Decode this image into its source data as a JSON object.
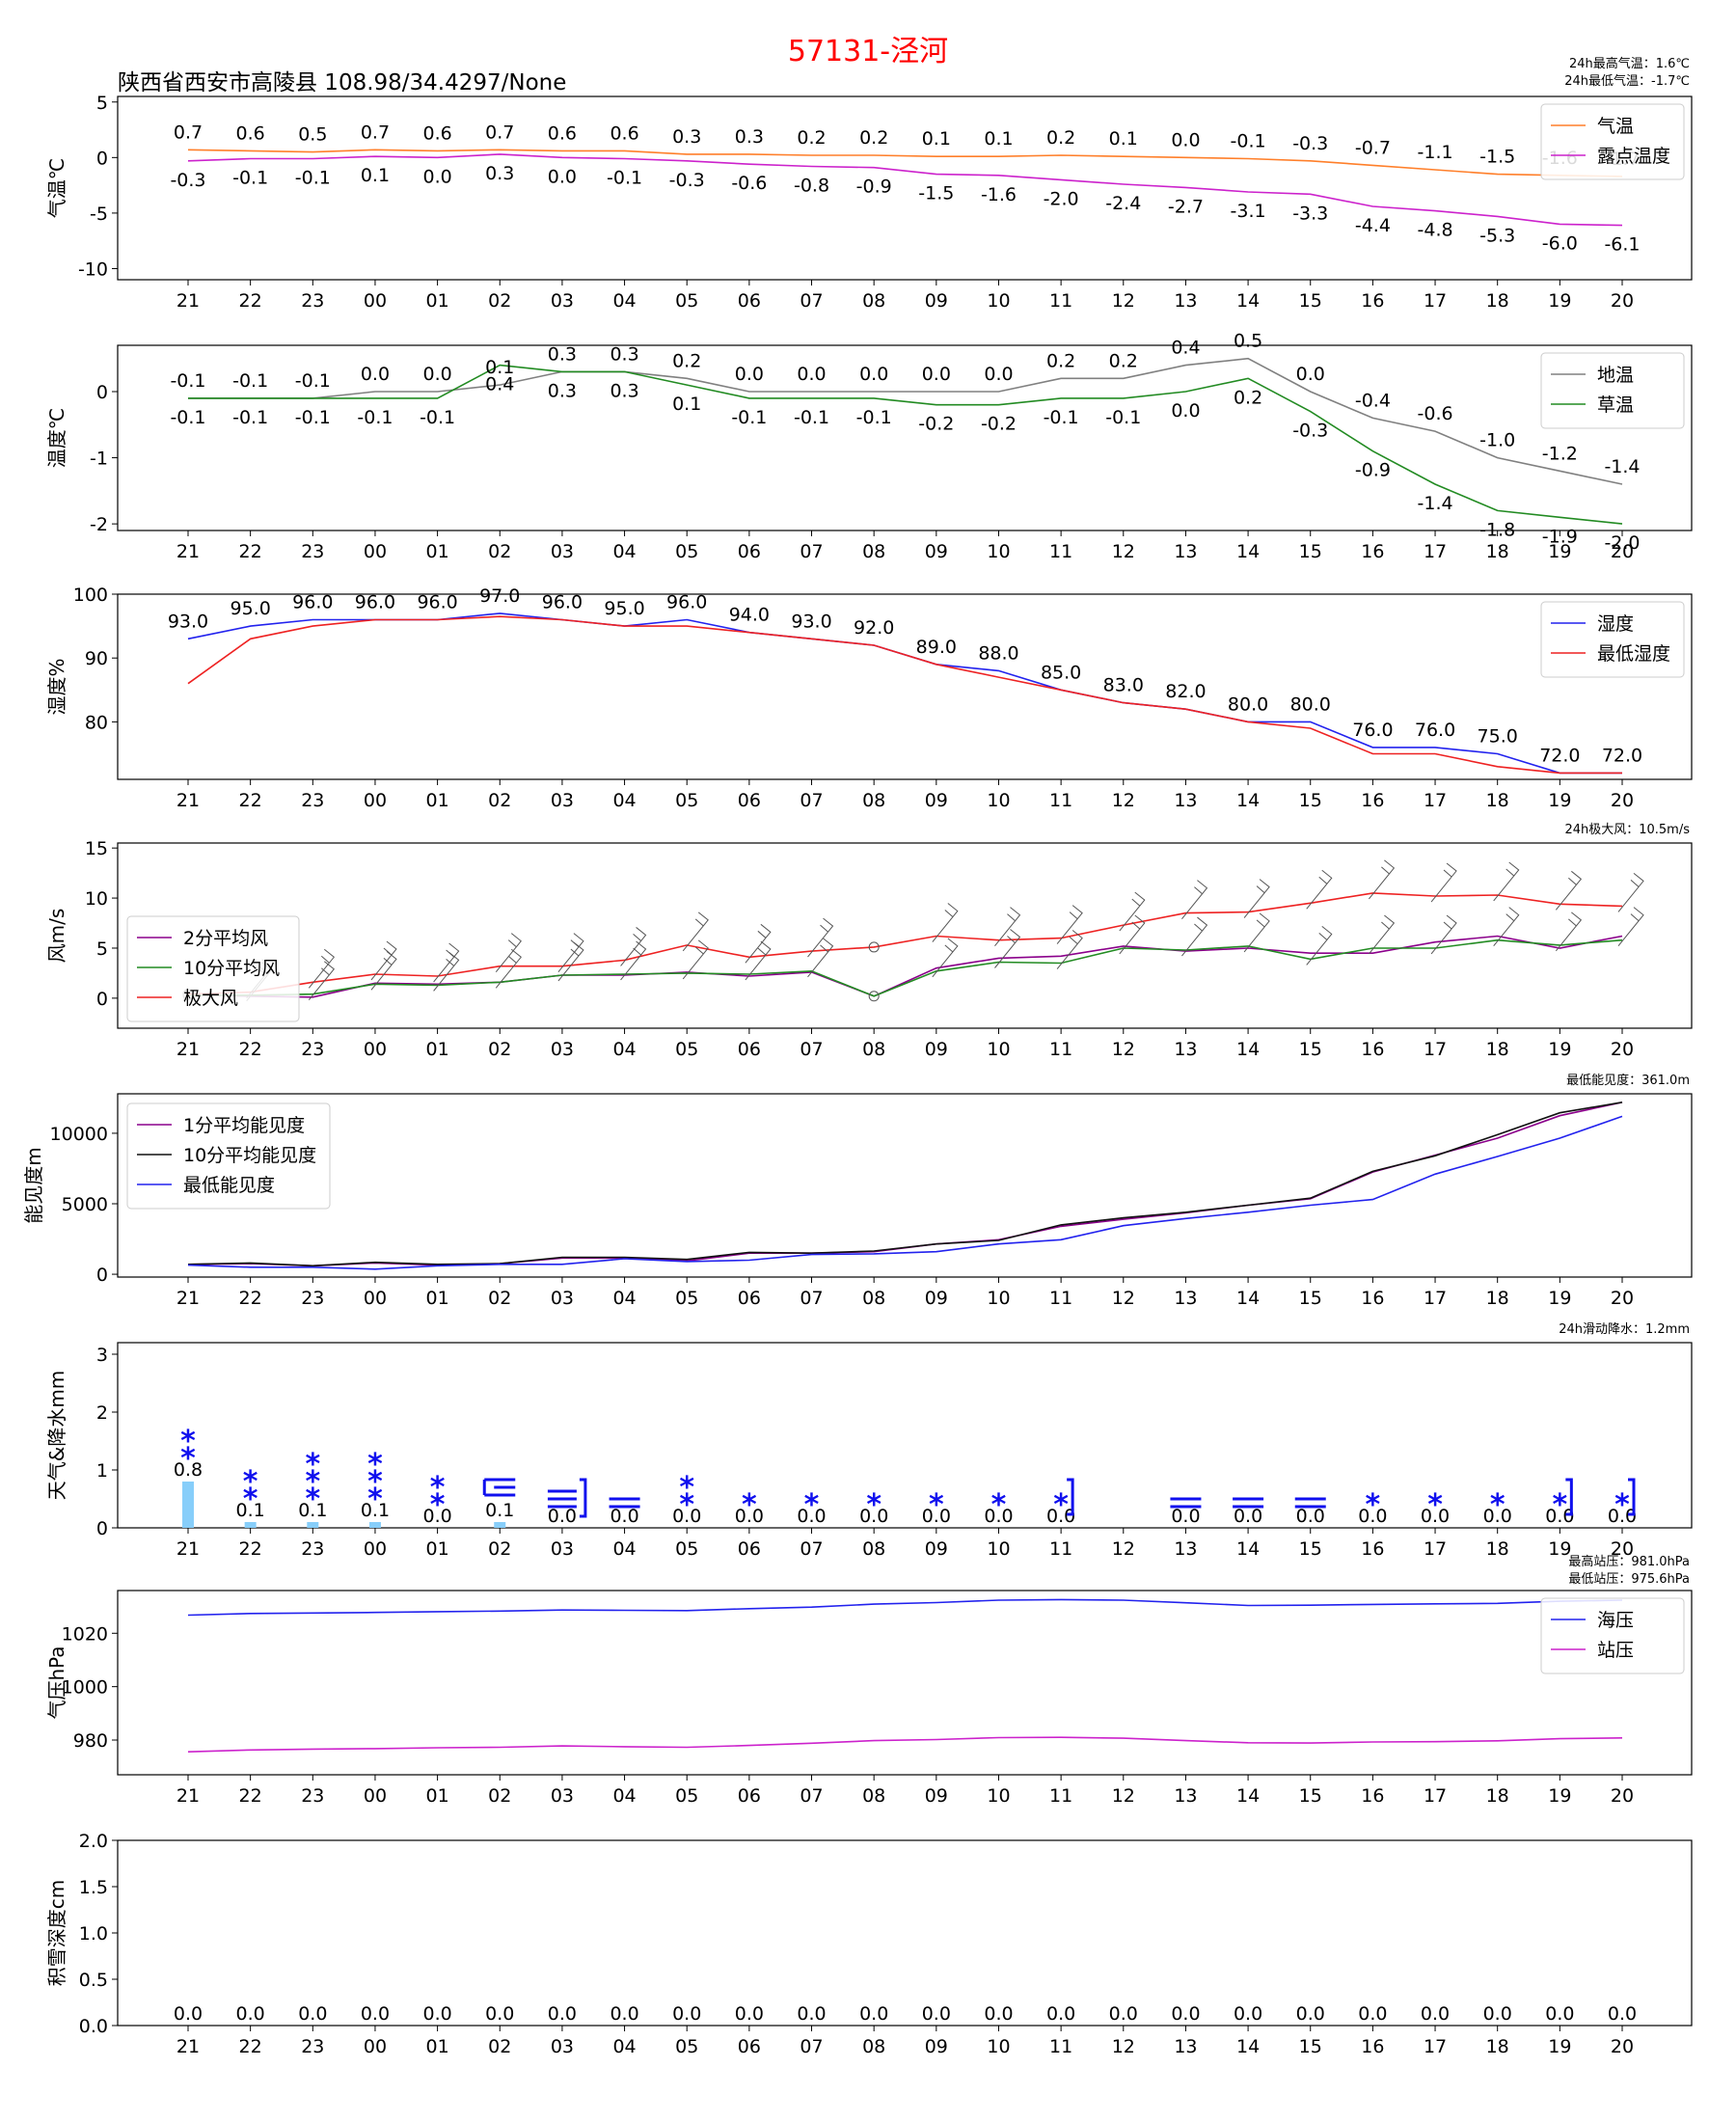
{
  "header": {
    "title": "57131-泾河",
    "station": "陕西省西安市高陵县  108.98/34.4297/None"
  },
  "hours": [
    "21",
    "22",
    "23",
    "00",
    "01",
    "02",
    "03",
    "04",
    "05",
    "06",
    "07",
    "08",
    "09",
    "10",
    "11",
    "12",
    "13",
    "14",
    "15",
    "16",
    "17",
    "18",
    "19",
    "20"
  ],
  "chart_data": [
    {
      "id": "temp",
      "type": "line",
      "ylabel": "气温℃",
      "ylim": [
        -11,
        5.5
      ],
      "yticks": [
        5,
        0,
        -5,
        -10
      ],
      "notes": [
        "24h最高气温：1.6℃",
        "24h最低气温：-1.7℃"
      ],
      "legend": "top-right",
      "series": [
        {
          "name": "气温",
          "color": "#ff7f2a",
          "labels": "above",
          "values": [
            0.7,
            0.6,
            0.5,
            0.7,
            0.6,
            0.7,
            0.6,
            0.6,
            0.3,
            0.3,
            0.2,
            0.2,
            0.1,
            0.1,
            0.2,
            0.1,
            0.0,
            -0.1,
            -0.3,
            -0.7,
            -1.1,
            -1.5,
            -1.6,
            -1.7
          ]
        },
        {
          "name": "露点温度",
          "color": "#cc22cc",
          "labels": "below",
          "values": [
            -0.3,
            -0.1,
            -0.1,
            0.1,
            0.0,
            0.3,
            0.0,
            -0.1,
            -0.3,
            -0.6,
            -0.8,
            -0.9,
            -1.5,
            -1.6,
            -2.0,
            -2.4,
            -2.7,
            -3.1,
            -3.3,
            -4.4,
            -4.8,
            -5.3,
            -6.0,
            -6.1
          ]
        }
      ]
    },
    {
      "id": "ground",
      "type": "line",
      "ylabel": "温度℃",
      "ylim": [
        -2.1,
        0.7
      ],
      "yticks": [
        0,
        -1,
        -2
      ],
      "legend": "top-right",
      "series": [
        {
          "name": "地温",
          "color": "#808080",
          "labels": "above",
          "values": [
            -0.1,
            -0.1,
            -0.1,
            0.0,
            0.0,
            0.1,
            0.3,
            0.3,
            0.2,
            0.0,
            0.0,
            0.0,
            0.0,
            0.0,
            0.2,
            0.2,
            0.4,
            0.5,
            0.0,
            -0.4,
            -0.6,
            -1.0,
            -1.2,
            -1.4
          ]
        },
        {
          "name": "草温",
          "color": "#228b22",
          "labels": "below",
          "values": [
            -0.1,
            -0.1,
            -0.1,
            -0.1,
            -0.1,
            0.4,
            0.3,
            0.3,
            0.1,
            -0.1,
            -0.1,
            -0.1,
            -0.2,
            -0.2,
            -0.1,
            -0.1,
            0.0,
            0.2,
            -0.3,
            -0.9,
            -1.4,
            -1.8,
            -1.9,
            -2.0
          ]
        }
      ]
    },
    {
      "id": "humidity",
      "type": "line",
      "ylabel": "湿度%",
      "ylim": [
        71,
        100
      ],
      "yticks": [
        100,
        90,
        80
      ],
      "legend": "top-right",
      "series": [
        {
          "name": "湿度",
          "color": "#2222ee",
          "labels": "above",
          "values": [
            93.0,
            95.0,
            96.0,
            96.0,
            96.0,
            97.0,
            96.0,
            95.0,
            96.0,
            94.0,
            93.0,
            92.0,
            89.0,
            88.0,
            85.0,
            83.0,
            82.0,
            80.0,
            80.0,
            76.0,
            76.0,
            75.0,
            72.0,
            72.0
          ]
        },
        {
          "name": "最低湿度",
          "color": "#ee2222",
          "labels": "none",
          "values": [
            86,
            93,
            95,
            96,
            96,
            96.5,
            96,
            95,
            95,
            94,
            93,
            92,
            89,
            87,
            85,
            83,
            82,
            80,
            79,
            75,
            75,
            73,
            72,
            72
          ]
        }
      ]
    },
    {
      "id": "wind",
      "type": "line",
      "ylabel": "风m/s",
      "ylim": [
        -3,
        15.5
      ],
      "yticks": [
        15,
        10,
        5,
        0
      ],
      "notes": [
        "24h极大风：10.5m/s"
      ],
      "legend": "top-left",
      "series": [
        {
          "name": "2分平均风",
          "color": "#8b008b",
          "values": [
            0.3,
            0.2,
            0.1,
            1.5,
            1.4,
            1.6,
            2.3,
            2.3,
            2.6,
            2.2,
            2.6,
            0.2,
            3.0,
            4.0,
            4.2,
            5.2,
            4.7,
            5.0,
            4.5,
            4.5,
            5.6,
            6.2,
            5.0,
            6.2
          ]
        },
        {
          "name": "10分平均风",
          "color": "#228b22",
          "values": [
            0.3,
            0.3,
            0.4,
            1.4,
            1.3,
            1.6,
            2.3,
            2.4,
            2.5,
            2.4,
            2.7,
            0.2,
            2.7,
            3.6,
            3.5,
            5.0,
            4.8,
            5.2,
            3.9,
            5.0,
            5.0,
            5.8,
            5.3,
            5.8
          ]
        },
        {
          "name": "极大风",
          "color": "#ee2222",
          "values": [
            0.4,
            0.6,
            1.6,
            2.4,
            2.2,
            3.2,
            3.2,
            3.8,
            5.3,
            4.1,
            4.7,
            5.1,
            6.2,
            5.8,
            6.0,
            7.3,
            8.5,
            8.6,
            9.5,
            10.5,
            10.2,
            10.3,
            9.4,
            9.2
          ]
        }
      ]
    },
    {
      "id": "visibility",
      "type": "line",
      "ylabel": "能见度m",
      "ylim": [
        -200,
        12800
      ],
      "yticks": [
        10000,
        5000,
        0
      ],
      "notes": [
        "最低能见度：361.0m"
      ],
      "legend": "top-left",
      "series": [
        {
          "name": "1分平均能见度",
          "color": "#8b008b",
          "values": [
            700,
            750,
            600,
            800,
            650,
            750,
            1150,
            1150,
            950,
            1500,
            1500,
            1600,
            2150,
            2450,
            3400,
            3900,
            4350,
            4900,
            5350,
            7250,
            8450,
            9650,
            11250,
            12200
          ]
        },
        {
          "name": "10分平均能见度",
          "color": "#111111",
          "values": [
            700,
            800,
            600,
            850,
            700,
            750,
            1200,
            1200,
            1050,
            1550,
            1500,
            1650,
            2150,
            2400,
            3500,
            4000,
            4400,
            4900,
            5400,
            7300,
            8400,
            9900,
            11450,
            12200
          ]
        },
        {
          "name": "最低能见度",
          "color": "#2222ee",
          "values": [
            650,
            500,
            500,
            361,
            600,
            700,
            700,
            1100,
            900,
            1000,
            1400,
            1450,
            1600,
            2150,
            2450,
            3450,
            3950,
            4400,
            4900,
            5300,
            7100,
            8350,
            9650,
            11200
          ]
        }
      ]
    },
    {
      "id": "precip",
      "type": "bar",
      "ylabel": "天气&降水mm",
      "ylim": [
        0,
        3.2
      ],
      "yticks": [
        0,
        1,
        2,
        3
      ],
      "notes": [
        "24h滑动降水：1.2mm"
      ],
      "bar_color": "#87cefa",
      "values": [
        0.8,
        0.1,
        0.1,
        0.1,
        0.0,
        0.1,
        0.0,
        0.0,
        0.0,
        0.0,
        0.0,
        0.0,
        0.0,
        0.0,
        0.0,
        0.0,
        0.0,
        0.0,
        0.0,
        0.0,
        0.0,
        0.0,
        0.0,
        0.0
      ],
      "value_labels": [
        "0.8",
        "0.1",
        "0.1",
        "0.1",
        "0.0",
        "0.1",
        "0.0",
        "0.0",
        "0.0",
        "0.0",
        "0.0",
        "0.0",
        "0.0",
        "0.0",
        "0.0",
        "",
        "0.0",
        "0.0",
        "0.0",
        "0.0",
        "0.0",
        "0.0",
        "0.0",
        "0.0"
      ],
      "weather_symbols": [
        "snow-2",
        "snow-2",
        "snow-3",
        "snow-3",
        "snow-2",
        "fog-mixed",
        "fog-bracket",
        "fog",
        "snow-2",
        "snow-1",
        "snow-1",
        "snow-1",
        "snow-1",
        "snow-1",
        "snow-bracket",
        "none",
        "fog",
        "fog",
        "fog",
        "snow-1",
        "snow-1",
        "snow-1",
        "snow-bracket",
        "snow-bracket"
      ]
    },
    {
      "id": "pressure",
      "type": "line",
      "ylabel": "气压hPa",
      "ylim": [
        967,
        1036
      ],
      "yticks": [
        1020,
        1000,
        980
      ],
      "notes": [
        "最高站压：981.0hPa",
        "最低站压：975.6hPa"
      ],
      "legend": "top-right",
      "series": [
        {
          "name": "海压",
          "color": "#2222ee",
          "values": [
            1026.8,
            1027.4,
            1027.6,
            1027.8,
            1028.1,
            1028.3,
            1028.7,
            1028.6,
            1028.5,
            1029.2,
            1029.8,
            1030.9,
            1031.5,
            1032.4,
            1032.6,
            1032.4,
            1031.4,
            1030.4,
            1030.5,
            1030.8,
            1031.0,
            1031.2,
            1032.0,
            1032.4
          ]
        },
        {
          "name": "站压",
          "color": "#cc22cc",
          "values": [
            975.6,
            976.3,
            976.6,
            976.8,
            977.1,
            977.3,
            977.8,
            977.5,
            977.3,
            978.0,
            978.8,
            979.8,
            980.2,
            980.9,
            981.0,
            980.7,
            979.8,
            979.0,
            978.9,
            979.3,
            979.4,
            979.7,
            980.5,
            980.8
          ]
        }
      ]
    },
    {
      "id": "snow",
      "type": "bar",
      "ylabel": "积雪深度cm",
      "ylim": [
        0,
        2.0
      ],
      "yticks": [
        0.0,
        0.5,
        1.0,
        1.5,
        2.0
      ],
      "values": [
        0,
        0,
        0,
        0,
        0,
        0,
        0,
        0,
        0,
        0,
        0,
        0,
        0,
        0,
        0,
        0,
        0,
        0,
        0,
        0,
        0,
        0,
        0,
        0
      ],
      "value_labels": [
        "0.0",
        "0.0",
        "0.0",
        "0.0",
        "0.0",
        "0.0",
        "0.0",
        "0.0",
        "0.0",
        "0.0",
        "0.0",
        "0.0",
        "0.0",
        "0.0",
        "0.0",
        "0.0",
        "0.0",
        "0.0",
        "0.0",
        "0.0",
        "0.0",
        "0.0",
        "0.0",
        "0.0"
      ]
    }
  ]
}
